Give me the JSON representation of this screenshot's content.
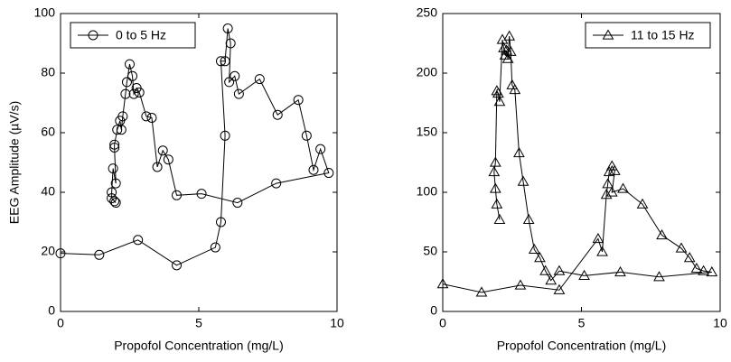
{
  "chart_data": [
    {
      "type": "line",
      "xlabel": "Propofol Concentration (mg/L)",
      "ylabel": "EEG Amplitude (µV/s)",
      "xlim": [
        0,
        10
      ],
      "xticks": [
        0,
        5,
        10
      ],
      "ylim": [
        0,
        100
      ],
      "yticks": [
        0,
        20,
        40,
        60,
        80,
        100
      ],
      "legend": "upper left",
      "marker": "circle",
      "x": [
        0,
        1.4,
        2.8,
        4.2,
        5.6,
        5.8,
        5.95,
        5.8,
        5.95,
        6.05,
        6.15,
        6.1,
        6.3,
        6.45,
        7.2,
        7.85,
        8.6,
        8.9,
        9.15,
        9.4,
        9.7,
        7.8,
        6.4,
        5.1,
        4.2,
        3.9,
        3.7,
        3.5,
        3.3,
        3.1,
        2.85,
        2.75,
        2.65,
        2.6,
        2.5,
        2.4,
        2.35,
        2.25,
        2.2,
        2.15,
        2.05,
        1.95,
        1.95,
        2.0,
        1.9,
        1.85,
        1.85,
        1.95,
        2.0
      ],
      "series": [
        {
          "name": "0 to 5 Hz",
          "color": "#000000",
          "values": [
            19.5,
            19,
            24,
            15.5,
            21.5,
            30,
            59,
            84,
            84,
            95,
            90,
            77,
            79,
            73,
            78,
            66,
            71,
            59,
            47.5,
            54.5,
            46.5,
            43,
            36.5,
            39.5,
            39,
            51,
            54,
            48.5,
            65,
            65.5,
            73.5,
            75,
            73,
            79,
            83,
            77,
            73,
            65.5,
            61,
            64,
            61,
            56,
            55,
            43,
            48,
            40,
            38,
            37,
            36.5
          ]
        }
      ]
    },
    {
      "type": "line",
      "xlabel": "Propofol Concentration (mg/L)",
      "xlim": [
        0,
        10
      ],
      "xticks": [
        0,
        5,
        10
      ],
      "ylim": [
        0,
        250
      ],
      "yticks": [
        0,
        50,
        100,
        150,
        200,
        250
      ],
      "legend": "upper right",
      "marker": "triangle",
      "x": [
        0,
        1.4,
        2.8,
        4.2,
        5.6,
        5.75,
        5.9,
        5.95,
        6.0,
        6.1,
        6.2,
        6.1,
        6.5,
        7.2,
        7.9,
        8.6,
        8.9,
        9.15,
        9.4,
        9.7,
        7.8,
        6.4,
        5.1,
        4.2,
        3.9,
        3.7,
        3.5,
        3.3,
        3.1,
        2.9,
        2.75,
        2.6,
        2.5,
        2.45,
        2.4,
        2.35,
        2.3,
        2.25,
        2.2,
        2.15,
        2.05,
        2.0,
        1.95,
        1.9,
        1.85,
        1.9,
        1.95,
        2.05
      ],
      "series": [
        {
          "name": "11 to 15 Hz",
          "color": "#000000",
          "values": [
            23,
            16,
            22,
            18,
            61,
            50,
            98,
            107,
            117,
            122,
            118,
            100,
            103,
            90,
            64,
            53,
            45,
            36,
            34,
            33,
            29,
            33,
            30,
            34,
            26,
            34,
            45,
            52,
            77,
            109,
            133,
            186,
            190,
            218,
            231,
            212,
            219,
            215,
            221,
            228,
            176,
            183,
            185,
            125,
            117,
            103,
            90,
            77
          ]
        }
      ]
    }
  ]
}
